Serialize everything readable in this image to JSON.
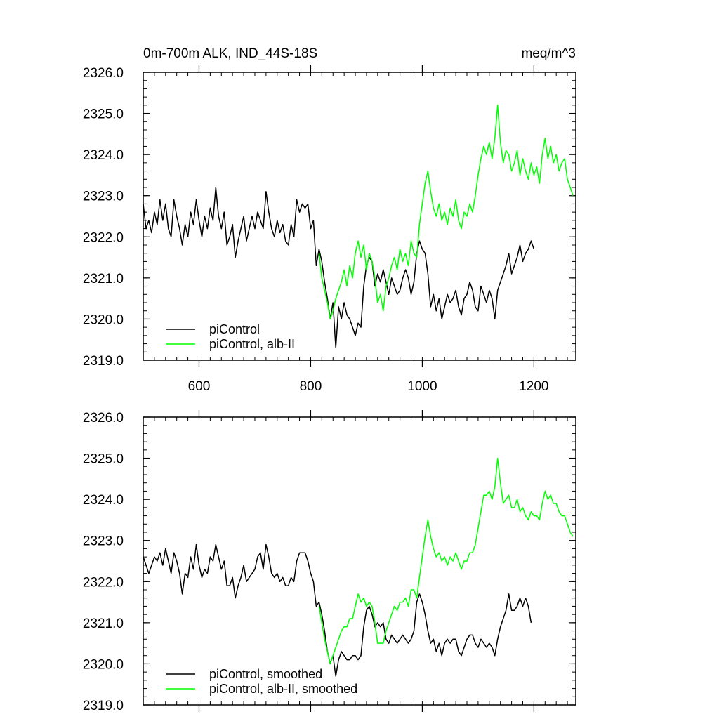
{
  "chart_data": [
    {
      "type": "line",
      "title": "0m-700m ALK, IND_44S-18S",
      "units": "meq/m^3",
      "xlim": [
        500,
        1275
      ],
      "ylim": [
        2319.0,
        2326.0
      ],
      "x_ticks": [
        600,
        800,
        1000,
        1200
      ],
      "x_tick_labels": [
        "600",
        "800",
        "1000",
        "1200"
      ],
      "y_ticks": [
        2319,
        2320,
        2321,
        2322,
        2323,
        2324,
        2325,
        2326
      ],
      "y_tick_labels": [
        "2319.0",
        "2320.0",
        "2321.0",
        "2322.0",
        "2323.0",
        "2324.0",
        "2325.0",
        "2326.0"
      ],
      "legend_position": "bottom-left",
      "series": [
        {
          "name": "piControl",
          "color": "#000000",
          "x": [
            500,
            505,
            510,
            515,
            520,
            525,
            530,
            535,
            540,
            545,
            550,
            555,
            560,
            565,
            570,
            575,
            580,
            585,
            590,
            595,
            600,
            605,
            610,
            615,
            620,
            625,
            630,
            635,
            640,
            645,
            650,
            655,
            660,
            665,
            670,
            675,
            680,
            685,
            690,
            695,
            700,
            705,
            710,
            715,
            720,
            725,
            730,
            735,
            740,
            745,
            750,
            755,
            760,
            765,
            770,
            775,
            780,
            785,
            790,
            795,
            800,
            805,
            810,
            815,
            820,
            825,
            830,
            835,
            840,
            845,
            850,
            855,
            860,
            865,
            870,
            875,
            880,
            885,
            890,
            895,
            900,
            905,
            910,
            915,
            920,
            925,
            930,
            935,
            940,
            945,
            950,
            955,
            960,
            965,
            970,
            975,
            980,
            985,
            990,
            995,
            1000,
            1005,
            1010,
            1015,
            1020,
            1025,
            1030,
            1035,
            1040,
            1045,
            1050,
            1055,
            1060,
            1065,
            1070,
            1075,
            1080,
            1085,
            1090,
            1095,
            1100,
            1105,
            1110,
            1115,
            1120,
            1125,
            1130,
            1135,
            1140,
            1145,
            1150,
            1155,
            1160,
            1165,
            1170,
            1175,
            1180,
            1185,
            1190,
            1195,
            1200
          ],
          "values": [
            2322.8,
            2322.2,
            2322.4,
            2322.1,
            2322.6,
            2322.3,
            2322.9,
            2322.4,
            2322.8,
            2322.2,
            2322.0,
            2322.9,
            2322.5,
            2322.2,
            2321.8,
            2322.3,
            2322.0,
            2322.6,
            2322.3,
            2322.9,
            2322.4,
            2322.0,
            2322.5,
            2322.2,
            2322.7,
            2322.4,
            2323.2,
            2322.5,
            2322.2,
            2322.6,
            2321.8,
            2322.0,
            2322.3,
            2321.5,
            2321.9,
            2322.2,
            2322.5,
            2321.9,
            2322.2,
            2322.5,
            2322.2,
            2322.6,
            2322.4,
            2322.2,
            2323.1,
            2322.6,
            2322.2,
            2322.0,
            2322.4,
            2322.1,
            2322.3,
            2321.9,
            2321.8,
            2322.3,
            2322.0,
            2322.9,
            2322.6,
            2322.8,
            2322.7,
            2322.8,
            2322.2,
            2322.4,
            2321.3,
            2321.7,
            2321.4,
            2320.9,
            2320.5,
            2320.0,
            2320.4,
            2319.3,
            2320.3,
            2320.0,
            2320.4,
            2320.1,
            2320.0,
            2319.8,
            2319.6,
            2319.9,
            2319.8,
            2320.8,
            2321.3,
            2321.5,
            2321.4,
            2320.8,
            2321.1,
            2320.9,
            2321.2,
            2320.9,
            2320.6,
            2321.0,
            2320.8,
            2320.6,
            2320.7,
            2321.0,
            2321.2,
            2321.0,
            2320.6,
            2320.9,
            2321.6,
            2321.9,
            2321.7,
            2321.6,
            2321.1,
            2320.3,
            2320.6,
            2320.2,
            2320.5,
            2320.0,
            2320.3,
            2320.6,
            2320.4,
            2320.5,
            2320.7,
            2320.3,
            2320.1,
            2320.5,
            2320.6,
            2320.9,
            2320.7,
            2320.3,
            2320.2,
            2320.8,
            2320.6,
            2320.4,
            2320.7,
            2320.5,
            2320.0,
            2320.7,
            2320.9,
            2321.1,
            2321.3,
            2321.6,
            2321.1,
            2321.3,
            2321.5,
            2321.8,
            2321.4,
            2321.6,
            2321.7,
            2321.9,
            2321.7
          ]
        },
        {
          "name": "piControl, alb-II",
          "color": "#00ff00",
          "x": [
            815,
            820,
            825,
            830,
            835,
            840,
            845,
            850,
            855,
            860,
            865,
            870,
            875,
            880,
            885,
            890,
            895,
            900,
            905,
            910,
            915,
            920,
            925,
            930,
            935,
            940,
            945,
            950,
            955,
            960,
            965,
            970,
            975,
            980,
            985,
            990,
            995,
            1000,
            1005,
            1010,
            1015,
            1020,
            1025,
            1030,
            1035,
            1040,
            1045,
            1050,
            1055,
            1060,
            1065,
            1070,
            1075,
            1080,
            1085,
            1090,
            1095,
            1100,
            1105,
            1110,
            1115,
            1120,
            1125,
            1130,
            1135,
            1140,
            1145,
            1150,
            1155,
            1160,
            1165,
            1170,
            1175,
            1180,
            1185,
            1190,
            1195,
            1200,
            1205,
            1210,
            1215,
            1220,
            1225,
            1230,
            1235,
            1240,
            1245,
            1250,
            1255,
            1260,
            1265,
            1270
          ],
          "values": [
            2321.6,
            2321.0,
            2320.7,
            2320.4,
            2320.0,
            2320.2,
            2320.5,
            2320.7,
            2320.9,
            2321.2,
            2320.8,
            2321.3,
            2321.0,
            2321.6,
            2321.9,
            2321.5,
            2321.8,
            2321.2,
            2321.6,
            2321.4,
            2321.0,
            2320.4,
            2320.6,
            2320.2,
            2320.8,
            2321.0,
            2321.3,
            2321.5,
            2321.2,
            2321.7,
            2321.4,
            2321.6,
            2321.3,
            2321.9,
            2321.6,
            2321.5,
            2322.3,
            2322.8,
            2323.3,
            2323.6,
            2323.1,
            2322.7,
            2322.5,
            2322.8,
            2322.4,
            2322.6,
            2322.3,
            2322.7,
            2322.5,
            2322.9,
            2322.4,
            2322.2,
            2322.6,
            2322.5,
            2322.8,
            2322.6,
            2323.0,
            2323.5,
            2323.9,
            2324.2,
            2324.0,
            2324.3,
            2323.9,
            2324.4,
            2325.2,
            2324.3,
            2323.8,
            2324.1,
            2324.0,
            2323.6,
            2323.8,
            2324.1,
            2323.5,
            2323.9,
            2323.6,
            2323.4,
            2323.8,
            2323.5,
            2323.7,
            2323.3,
            2324.0,
            2324.4,
            2323.9,
            2324.2,
            2323.8,
            2324.0,
            2323.6,
            2323.8,
            2323.9,
            2323.4,
            2323.2,
            2323.0
          ]
        }
      ]
    },
    {
      "type": "line",
      "xlim": [
        500,
        1275
      ],
      "ylim": [
        2319.0,
        2326.0
      ],
      "y_ticks": [
        2319,
        2320,
        2321,
        2322,
        2323,
        2324,
        2325,
        2326
      ],
      "y_tick_labels": [
        "2319.0",
        "2320.0",
        "2321.0",
        "2322.0",
        "2323.0",
        "2324.0",
        "2325.0",
        "2326.0"
      ],
      "legend_position": "bottom-left",
      "series": [
        {
          "name": "piControl, smoothed",
          "color": "#000000",
          "x": [
            500,
            505,
            510,
            515,
            520,
            525,
            530,
            535,
            540,
            545,
            550,
            555,
            560,
            565,
            570,
            575,
            580,
            585,
            590,
            595,
            600,
            605,
            610,
            615,
            620,
            625,
            630,
            635,
            640,
            645,
            650,
            655,
            660,
            665,
            670,
            675,
            680,
            685,
            690,
            695,
            700,
            705,
            710,
            715,
            720,
            725,
            730,
            735,
            740,
            745,
            750,
            755,
            760,
            765,
            770,
            775,
            780,
            785,
            790,
            795,
            800,
            805,
            810,
            815,
            820,
            825,
            830,
            835,
            840,
            845,
            850,
            855,
            860,
            865,
            870,
            875,
            880,
            885,
            890,
            895,
            900,
            905,
            910,
            915,
            920,
            925,
            930,
            935,
            940,
            945,
            950,
            955,
            960,
            965,
            970,
            975,
            980,
            985,
            990,
            995,
            1000,
            1005,
            1010,
            1015,
            1020,
            1025,
            1030,
            1035,
            1040,
            1045,
            1050,
            1055,
            1060,
            1065,
            1070,
            1075,
            1080,
            1085,
            1090,
            1095,
            1100,
            1105,
            1110,
            1115,
            1120,
            1125,
            1130,
            1135,
            1140,
            1145,
            1150,
            1155,
            1160,
            1165,
            1170,
            1175,
            1180,
            1185,
            1190,
            1195
          ],
          "values": [
            2322.6,
            2322.4,
            2322.2,
            2322.4,
            2322.6,
            2322.5,
            2322.7,
            2322.4,
            2322.8,
            2322.5,
            2322.2,
            2322.7,
            2322.5,
            2322.2,
            2321.7,
            2322.2,
            2322.1,
            2322.6,
            2322.3,
            2322.9,
            2322.4,
            2322.1,
            2322.3,
            2322.2,
            2322.6,
            2322.5,
            2322.9,
            2322.6,
            2322.3,
            2322.5,
            2321.9,
            2321.9,
            2322.1,
            2321.6,
            2321.9,
            2322.1,
            2322.4,
            2322.0,
            2322.1,
            2322.2,
            2322.3,
            2322.6,
            2322.7,
            2322.3,
            2322.9,
            2322.6,
            2322.2,
            2322.1,
            2322.2,
            2322.0,
            2322.1,
            2321.9,
            2321.9,
            2322.1,
            2322.0,
            2322.5,
            2322.7,
            2322.7,
            2322.7,
            2322.5,
            2322.2,
            2322.0,
            2321.4,
            2321.5,
            2321.2,
            2320.8,
            2320.3,
            2320.0,
            2320.2,
            2319.7,
            2320.1,
            2320.3,
            2320.2,
            2320.1,
            2320.1,
            2320.2,
            2320.2,
            2320.1,
            2320.2,
            2320.9,
            2321.3,
            2321.4,
            2321.2,
            2320.9,
            2321.0,
            2320.9,
            2321.0,
            2320.6,
            2320.5,
            2320.7,
            2320.6,
            2320.5,
            2320.6,
            2320.7,
            2320.6,
            2320.5,
            2320.6,
            2320.8,
            2321.5,
            2321.7,
            2321.5,
            2321.2,
            2320.8,
            2320.5,
            2320.6,
            2320.3,
            2320.5,
            2320.2,
            2320.5,
            2320.6,
            2320.5,
            2320.6,
            2320.6,
            2320.3,
            2320.2,
            2320.4,
            2320.6,
            2320.7,
            2320.7,
            2320.5,
            2320.4,
            2320.6,
            2320.5,
            2320.4,
            2320.5,
            2320.4,
            2320.2,
            2320.6,
            2320.9,
            2321.1,
            2321.3,
            2321.7,
            2321.3,
            2321.3,
            2321.4,
            2321.6,
            2321.4,
            2321.6,
            2321.4,
            2321.0
          ]
        },
        {
          "name": "piControl, alb-II, smoothed",
          "color": "#00ff00",
          "x": [
            815,
            820,
            825,
            830,
            835,
            840,
            845,
            850,
            855,
            860,
            865,
            870,
            875,
            880,
            885,
            890,
            895,
            900,
            905,
            910,
            915,
            920,
            925,
            930,
            935,
            940,
            945,
            950,
            955,
            960,
            965,
            970,
            975,
            980,
            985,
            990,
            995,
            1000,
            1005,
            1010,
            1015,
            1020,
            1025,
            1030,
            1035,
            1040,
            1045,
            1050,
            1055,
            1060,
            1065,
            1070,
            1075,
            1080,
            1085,
            1090,
            1095,
            1100,
            1105,
            1110,
            1115,
            1120,
            1125,
            1130,
            1135,
            1140,
            1145,
            1150,
            1155,
            1160,
            1165,
            1170,
            1175,
            1180,
            1185,
            1190,
            1195,
            1200,
            1205,
            1210,
            1215,
            1220,
            1225,
            1230,
            1235,
            1240,
            1245,
            1250,
            1255,
            1260,
            1265,
            1270
          ],
          "values": [
            2321.4,
            2321.0,
            2320.6,
            2320.3,
            2320.0,
            2320.2,
            2320.4,
            2320.6,
            2320.8,
            2320.9,
            2320.9,
            2321.1,
            2321.1,
            2321.4,
            2321.7,
            2321.5,
            2321.6,
            2321.4,
            2321.5,
            2321.4,
            2321.0,
            2320.5,
            2320.5,
            2320.5,
            2320.8,
            2321.0,
            2321.2,
            2321.4,
            2321.3,
            2321.5,
            2321.5,
            2321.6,
            2321.4,
            2321.8,
            2321.8,
            2321.6,
            2322.1,
            2322.6,
            2323.1,
            2323.5,
            2323.1,
            2322.8,
            2322.6,
            2322.7,
            2322.5,
            2322.6,
            2322.4,
            2322.6,
            2322.5,
            2322.7,
            2322.5,
            2322.3,
            2322.5,
            2322.5,
            2322.7,
            2322.7,
            2322.9,
            2323.3,
            2323.7,
            2324.1,
            2324.1,
            2324.2,
            2324.0,
            2324.3,
            2325.0,
            2324.4,
            2323.9,
            2324.0,
            2324.1,
            2323.8,
            2323.8,
            2324.0,
            2323.7,
            2323.8,
            2323.6,
            2323.5,
            2323.7,
            2323.6,
            2323.6,
            2323.5,
            2323.9,
            2324.2,
            2324.0,
            2324.1,
            2323.9,
            2323.9,
            2323.7,
            2323.6,
            2323.6,
            2323.4,
            2323.2,
            2323.1
          ]
        }
      ]
    }
  ]
}
